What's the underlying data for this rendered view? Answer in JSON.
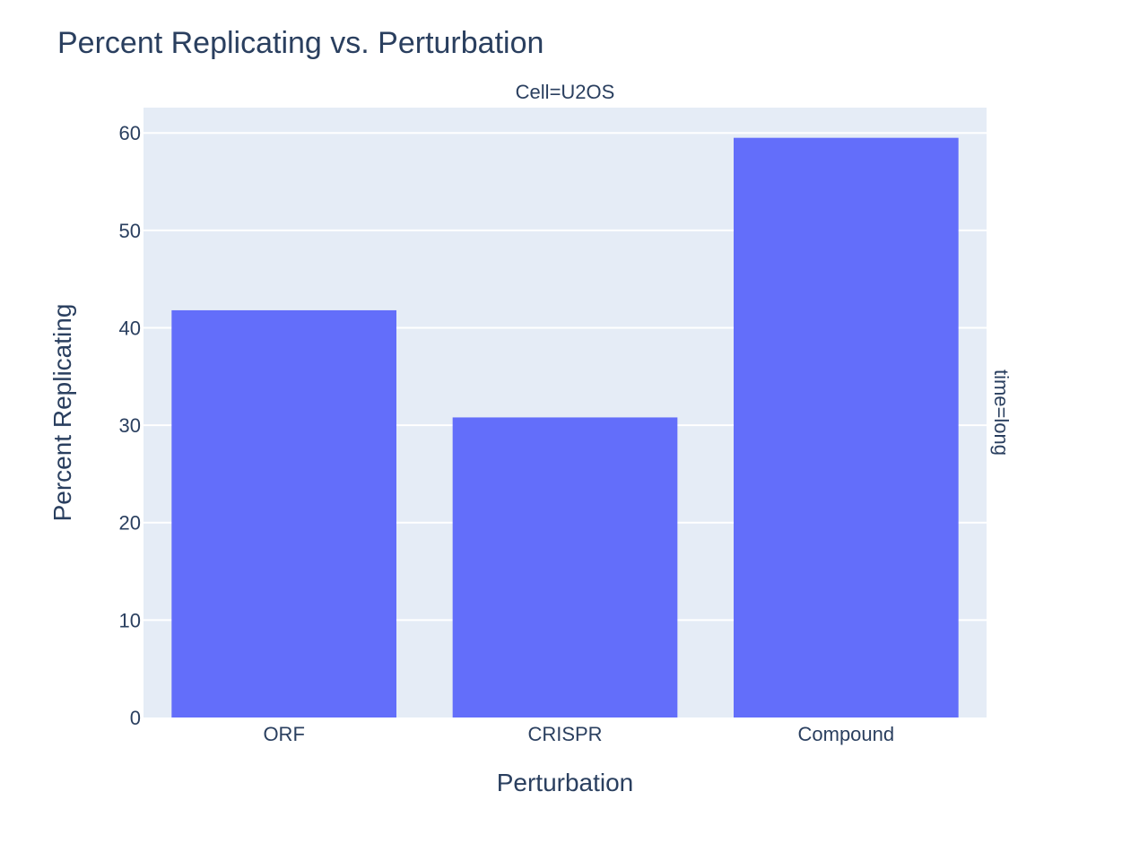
{
  "chart_data": {
    "type": "bar",
    "title": "Percent Replicating vs. Perturbation",
    "facet_column_label": "Cell=U2OS",
    "facet_row_label": "time=long",
    "xlabel": "Perturbation",
    "ylabel": "Percent Replicating",
    "categories": [
      "ORF",
      "CRISPR",
      "Compound"
    ],
    "values": [
      41.8,
      30.8,
      59.5
    ],
    "ylim": [
      0,
      62.6
    ],
    "yticks": [
      0,
      10,
      20,
      30,
      40,
      50,
      60
    ],
    "grid": true,
    "colors": {
      "bar": "#636efa",
      "plot_bg": "#e5ecf6",
      "grid": "#ffffff",
      "text": "#2a3f5f"
    }
  }
}
